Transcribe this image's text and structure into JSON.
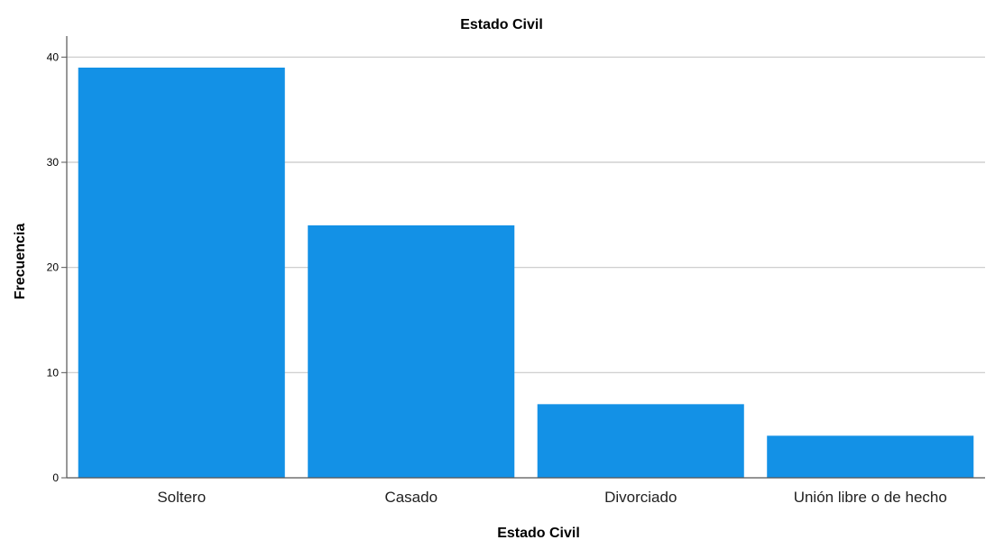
{
  "chart_data": {
    "type": "bar",
    "title": "Estado Civil",
    "xlabel": "Estado Civil",
    "ylabel": "Frecuencia",
    "categories": [
      "Soltero",
      "Casado",
      "Divorciado",
      "Unión libre o de hecho"
    ],
    "values": [
      39,
      24,
      7,
      4
    ],
    "ylim": [
      0,
      42
    ],
    "yticks": [
      0,
      10,
      20,
      30,
      40
    ],
    "yticks_labels": [
      "0",
      "10",
      "20",
      "30",
      "40"
    ],
    "grid": true,
    "bar_color": "#1391e6",
    "grid_color": "#c8c8c8",
    "axis_color": "#555555"
  }
}
